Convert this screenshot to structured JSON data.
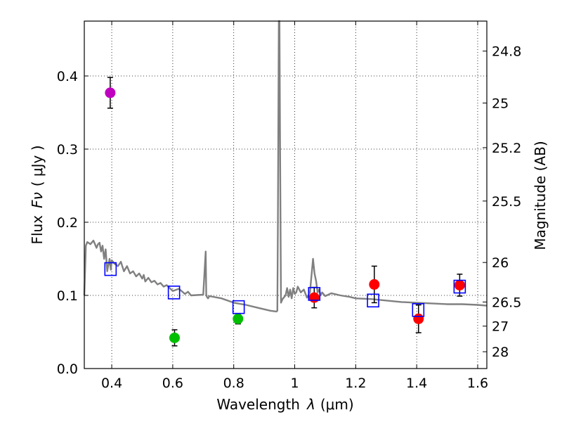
{
  "chart_data": {
    "type": "scatter",
    "xlabel_text": "Wavelength",
    "xlabel_symbol": "λ",
    "xlabel_unit": "(μm)",
    "ylabel_text": "Flux",
    "ylabel_symbol": "Fν",
    "ylabel_unit": "( μJy )",
    "y2label": "Magnitude (AB)",
    "xlim": [
      0.31,
      1.63
    ],
    "ylim": [
      0.0,
      0.475
    ],
    "grid": true,
    "x_ticks": [
      {
        "value": 0.4,
        "label": "0.4"
      },
      {
        "value": 0.6,
        "label": "0.6"
      },
      {
        "value": 0.8,
        "label": "0.8"
      },
      {
        "value": 1.0,
        "label": "1"
      },
      {
        "value": 1.2,
        "label": "1.2"
      },
      {
        "value": 1.4,
        "label": "1.4"
      },
      {
        "value": 1.6,
        "label": "1.6"
      }
    ],
    "y_ticks": [
      {
        "value": 0.0,
        "label": "0.0"
      },
      {
        "value": 0.1,
        "label": "0.1"
      },
      {
        "value": 0.2,
        "label": "0.2"
      },
      {
        "value": 0.3,
        "label": "0.3"
      },
      {
        "value": 0.4,
        "label": "0.4"
      }
    ],
    "y2_ticks": [
      {
        "flux": 0.434,
        "label": "24.8"
      },
      {
        "flux": 0.363,
        "label": "25"
      },
      {
        "flux": 0.302,
        "label": "25.2"
      },
      {
        "flux": 0.229,
        "label": "25.5"
      },
      {
        "flux": 0.145,
        "label": "26"
      },
      {
        "flux": 0.091,
        "label": "26.5"
      },
      {
        "flux": 0.058,
        "label": "27"
      },
      {
        "flux": 0.023,
        "label": "28"
      }
    ],
    "series": [
      {
        "name": "observed-purple",
        "color": "#bf00bf",
        "points": [
          {
            "x": 0.395,
            "y": 0.377,
            "yerr": 0.021
          }
        ]
      },
      {
        "name": "observed-green",
        "color": "#00bf00",
        "points": [
          {
            "x": 0.606,
            "y": 0.042,
            "yerr": 0.011
          },
          {
            "x": 0.814,
            "y": 0.068,
            "yerr": 0.007
          }
        ]
      },
      {
        "name": "observed-red",
        "color": "#ff0000",
        "points": [
          {
            "x": 1.064,
            "y": 0.097,
            "yerr": 0.014
          },
          {
            "x": 1.261,
            "y": 0.115,
            "yerr": 0.025
          },
          {
            "x": 1.406,
            "y": 0.068,
            "yerr": 0.019
          },
          {
            "x": 1.541,
            "y": 0.114,
            "yerr": 0.015
          }
        ]
      },
      {
        "name": "model-synthetic-photometry",
        "color": "#0000ff",
        "marker": "open-square",
        "points": [
          {
            "x": 0.396,
            "y": 0.136
          },
          {
            "x": 0.604,
            "y": 0.104
          },
          {
            "x": 0.816,
            "y": 0.084
          },
          {
            "x": 1.064,
            "y": 0.102
          },
          {
            "x": 1.257,
            "y": 0.093
          },
          {
            "x": 1.405,
            "y": 0.08
          },
          {
            "x": 1.541,
            "y": 0.112
          }
        ]
      }
    ],
    "model_spectrum": {
      "name": "model-sed",
      "color": "#808080",
      "x": [
        0.31,
        0.315,
        0.32,
        0.33,
        0.34,
        0.35,
        0.355,
        0.36,
        0.365,
        0.37,
        0.375,
        0.38,
        0.385,
        0.388,
        0.39,
        0.393,
        0.397,
        0.4,
        0.41,
        0.42,
        0.43,
        0.44,
        0.45,
        0.46,
        0.47,
        0.48,
        0.49,
        0.5,
        0.505,
        0.51,
        0.52,
        0.53,
        0.54,
        0.55,
        0.56,
        0.57,
        0.58,
        0.6,
        0.62,
        0.64,
        0.65,
        0.66,
        0.7,
        0.708,
        0.71,
        0.712,
        0.716,
        0.72,
        0.76,
        0.8,
        0.84,
        0.88,
        0.92,
        0.94,
        0.943,
        0.945,
        0.948,
        0.95,
        0.952,
        0.955,
        0.96,
        0.97,
        0.975,
        0.98,
        0.985,
        0.99,
        0.995,
        1.0,
        1.005,
        1.01,
        1.02,
        1.03,
        1.04,
        1.05,
        1.06,
        1.065,
        1.07,
        1.075,
        1.08,
        1.085,
        1.09,
        1.1,
        1.12,
        1.15,
        1.18,
        1.2,
        1.25,
        1.3,
        1.35,
        1.4,
        1.45,
        1.5,
        1.55,
        1.6,
        1.63
      ],
      "y": [
        0.1,
        0.168,
        0.173,
        0.17,
        0.175,
        0.165,
        0.17,
        0.172,
        0.16,
        0.168,
        0.15,
        0.163,
        0.133,
        0.14,
        0.143,
        0.15,
        0.135,
        0.148,
        0.143,
        0.14,
        0.146,
        0.133,
        0.14,
        0.13,
        0.133,
        0.126,
        0.13,
        0.123,
        0.128,
        0.119,
        0.124,
        0.118,
        0.12,
        0.115,
        0.117,
        0.112,
        0.114,
        0.106,
        0.109,
        0.102,
        0.105,
        0.1,
        0.101,
        0.16,
        0.101,
        0.098,
        0.096,
        0.099,
        0.096,
        0.09,
        0.087,
        0.083,
        0.079,
        0.078,
        0.079,
        0.2,
        0.475,
        0.475,
        0.3,
        0.09,
        0.095,
        0.1,
        0.11,
        0.098,
        0.108,
        0.096,
        0.11,
        0.102,
        0.104,
        0.112,
        0.104,
        0.108,
        0.097,
        0.104,
        0.15,
        0.13,
        0.12,
        0.104,
        0.108,
        0.1,
        0.104,
        0.099,
        0.103,
        0.1,
        0.098,
        0.096,
        0.095,
        0.093,
        0.091,
        0.09,
        0.089,
        0.088,
        0.088,
        0.087,
        0.086
      ]
    }
  }
}
